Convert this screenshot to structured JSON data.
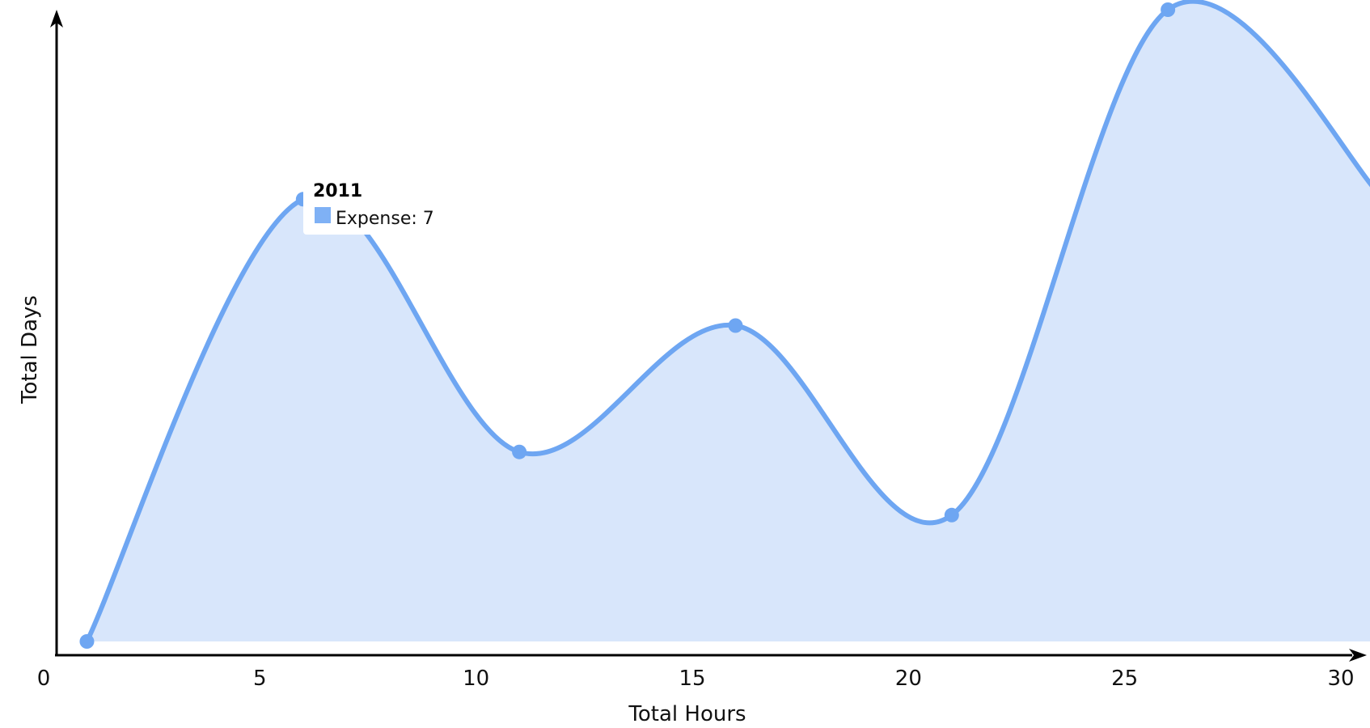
{
  "colors": {
    "line": "#6ea6f2",
    "fill": "#d8e6fb",
    "point": "#6ea6f2",
    "swatch": "#7fb1f5",
    "axis": "#000000"
  },
  "tooltip": {
    "title": "2011",
    "text": "Expense: 7"
  },
  "chart_data": {
    "type": "area",
    "xlabel": "Total Hours",
    "ylabel": "Total Days",
    "xlim": [
      0,
      30
    ],
    "ylim": [
      0,
      10
    ],
    "xticks": [
      "0",
      "5",
      "10",
      "15",
      "20",
      "25",
      "30"
    ],
    "grid": false,
    "series": [
      {
        "x": [
          1,
          6,
          11,
          16,
          21,
          26,
          31
        ],
        "values": [
          0,
          7,
          3,
          5,
          2,
          10,
          7
        ]
      }
    ]
  }
}
